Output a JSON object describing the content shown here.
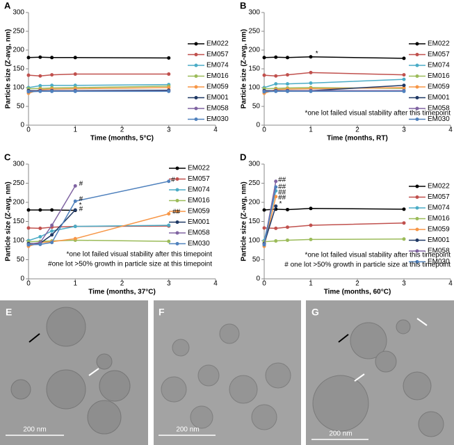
{
  "chart_data": [
    {
      "type": "line",
      "label": "A",
      "xlabel": "Time (months, 5°C)",
      "ylabel": "Particle size (Z-avg, nm)",
      "x": [
        0,
        0.25,
        0.5,
        1,
        3
      ],
      "xlim": [
        0,
        4
      ],
      "xticks": [
        0,
        1,
        2,
        3,
        4
      ],
      "ylim": [
        0,
        300
      ],
      "yticks": [
        0,
        50,
        100,
        150,
        200,
        250,
        300
      ],
      "legend": "right",
      "series": [
        {
          "name": "EM022",
          "color": "#000000",
          "values": [
            180,
            181,
            180,
            180,
            179
          ]
        },
        {
          "name": "EM057",
          "color": "#c0504d",
          "values": [
            133,
            131,
            134,
            136,
            136
          ]
        },
        {
          "name": "EM074",
          "color": "#4bacc6",
          "values": [
            100,
            105,
            106,
            106,
            108
          ]
        },
        {
          "name": "EM016",
          "color": "#9bbb59",
          "values": [
            97,
            98,
            99,
            100,
            104
          ]
        },
        {
          "name": "EM059",
          "color": "#f79646",
          "values": [
            85,
            95,
            96,
            97,
            100
          ]
        },
        {
          "name": "EM001",
          "color": "#1f3864",
          "values": [
            92,
            92,
            92,
            92,
            93
          ]
        },
        {
          "name": "EM058",
          "color": "#8064a2",
          "values": [
            90,
            91,
            91,
            91,
            91
          ]
        },
        {
          "name": "EM030",
          "color": "#4f81bd",
          "values": [
            89,
            90,
            90,
            90,
            90
          ]
        }
      ]
    },
    {
      "type": "line",
      "label": "B",
      "xlabel": "Time (months, RT)",
      "ylabel": "Particle size (Z-avg, nm)",
      "x": [
        0,
        0.25,
        0.5,
        1,
        3
      ],
      "xlim": [
        0,
        4
      ],
      "xticks": [
        0,
        1,
        2,
        3,
        4
      ],
      "ylim": [
        0,
        300
      ],
      "yticks": [
        0,
        50,
        100,
        150,
        200,
        250,
        300
      ],
      "legend": "right",
      "notes": [
        "*one lot failed visual stability after this timepoint"
      ],
      "annotations": [
        {
          "text": "*",
          "x": 1.1,
          "y": 190
        }
      ],
      "series": [
        {
          "name": "EM022",
          "color": "#000000",
          "values": [
            180,
            181,
            180,
            182,
            178
          ]
        },
        {
          "name": "EM057",
          "color": "#c0504d",
          "values": [
            133,
            131,
            134,
            140,
            134
          ]
        },
        {
          "name": "EM074",
          "color": "#4bacc6",
          "values": [
            100,
            110,
            110,
            112,
            122
          ]
        },
        {
          "name": "EM016",
          "color": "#9bbb59",
          "values": [
            97,
            98,
            99,
            100,
            98
          ]
        },
        {
          "name": "EM059",
          "color": "#f79646",
          "values": [
            85,
            95,
            96,
            97,
            100
          ]
        },
        {
          "name": "EM001",
          "color": "#1f3864",
          "values": [
            92,
            92,
            92,
            92,
            106
          ]
        },
        {
          "name": "EM058",
          "color": "#8064a2",
          "values": [
            90,
            91,
            91,
            92,
            92
          ]
        },
        {
          "name": "EM030",
          "color": "#4f81bd",
          "values": [
            89,
            90,
            90,
            90,
            90
          ]
        }
      ]
    },
    {
      "type": "line",
      "label": "C",
      "xlabel": "Time (months, 37°C)",
      "ylabel": "Particle size (Z-avg, nm)",
      "x": [
        0,
        0.25,
        0.5,
        1,
        3
      ],
      "xlim": [
        0,
        4
      ],
      "xticks": [
        0,
        1,
        2,
        3,
        4
      ],
      "ylim": [
        0,
        300
      ],
      "yticks": [
        0,
        50,
        100,
        150,
        200,
        250,
        300
      ],
      "legend": "right",
      "notes": [
        "*one lot failed visual stability after this timepoint",
        "#one lot >50% growth in particle size at this timepoint"
      ],
      "annotations": [
        {
          "text": "#",
          "x": 1.08,
          "y": 248
        },
        {
          "text": "#",
          "x": 1.08,
          "y": 208
        },
        {
          "text": "#",
          "x": 1.08,
          "y": 182
        },
        {
          "text": "*",
          "x": 1.08,
          "y": 192
        },
        {
          "text": "#",
          "x": 3.05,
          "y": 258
        },
        {
          "text": "##",
          "x": 3.08,
          "y": 175
        }
      ],
      "series": [
        {
          "name": "EM022",
          "color": "#000000",
          "values": [
            180,
            180,
            180,
            179,
            null
          ]
        },
        {
          "name": "EM057",
          "color": "#c0504d",
          "values": [
            133,
            132,
            135,
            137,
            138
          ]
        },
        {
          "name": "EM074",
          "color": "#4bacc6",
          "values": [
            100,
            110,
            125,
            137,
            140
          ]
        },
        {
          "name": "EM016",
          "color": "#9bbb59",
          "values": [
            97,
            98,
            99,
            101,
            98
          ]
        },
        {
          "name": "EM059",
          "color": "#f79646",
          "values": [
            85,
            95,
            97,
            105,
            170
          ]
        },
        {
          "name": "EM001",
          "color": "#1f3864",
          "values": [
            92,
            93,
            115,
            180,
            null
          ]
        },
        {
          "name": "EM058",
          "color": "#8064a2",
          "values": [
            90,
            95,
            140,
            243,
            null
          ]
        },
        {
          "name": "EM030",
          "color": "#4f81bd",
          "values": [
            89,
            90,
            95,
            203,
            255
          ]
        }
      ]
    },
    {
      "type": "line",
      "label": "D",
      "xlabel": "Time (months, 60°C)",
      "ylabel": "Particle size (Z-avg, nm)",
      "x": [
        0,
        0.25,
        0.5,
        1,
        3
      ],
      "xlim": [
        0,
        4
      ],
      "xticks": [
        0,
        1,
        2,
        3,
        4
      ],
      "ylim": [
        0,
        300
      ],
      "yticks": [
        0,
        50,
        100,
        150,
        200,
        250,
        300
      ],
      "legend": "right",
      "notes": [
        "*one lot failed visual stability after this timepoint",
        "# one lot >50% growth in particle size at this timepoint"
      ],
      "annotations": [
        {
          "text": "##",
          "x": 0.3,
          "y": 258
        },
        {
          "text": "##",
          "x": 0.3,
          "y": 240
        },
        {
          "text": "##",
          "x": 0.3,
          "y": 226
        },
        {
          "text": "##",
          "x": 0.3,
          "y": 212
        },
        {
          "text": "*",
          "x": 0.32,
          "y": 196
        }
      ],
      "series": [
        {
          "name": "EM022",
          "color": "#000000",
          "values": [
            180,
            182,
            181,
            184,
            182
          ]
        },
        {
          "name": "EM057",
          "color": "#c0504d",
          "values": [
            133,
            132,
            135,
            140,
            146
          ]
        },
        {
          "name": "EM074",
          "color": "#4bacc6",
          "values": [
            100,
            230,
            null,
            null,
            null
          ]
        },
        {
          "name": "EM016",
          "color": "#9bbb59",
          "values": [
            97,
            99,
            101,
            103,
            104
          ]
        },
        {
          "name": "EM059",
          "color": "#f79646",
          "values": [
            85,
            215,
            null,
            null,
            null
          ]
        },
        {
          "name": "EM001",
          "color": "#1f3864",
          "values": [
            92,
            190,
            null,
            null,
            null
          ]
        },
        {
          "name": "EM058",
          "color": "#8064a2",
          "values": [
            90,
            255,
            null,
            null,
            null
          ]
        },
        {
          "name": "EM030",
          "color": "#4f81bd",
          "values": [
            89,
            240,
            null,
            null,
            null
          ]
        }
      ]
    }
  ],
  "images": [
    {
      "label": "E",
      "scale": "200 nm"
    },
    {
      "label": "F",
      "scale": "200 nm"
    },
    {
      "label": "G",
      "scale": "200 nm"
    }
  ]
}
